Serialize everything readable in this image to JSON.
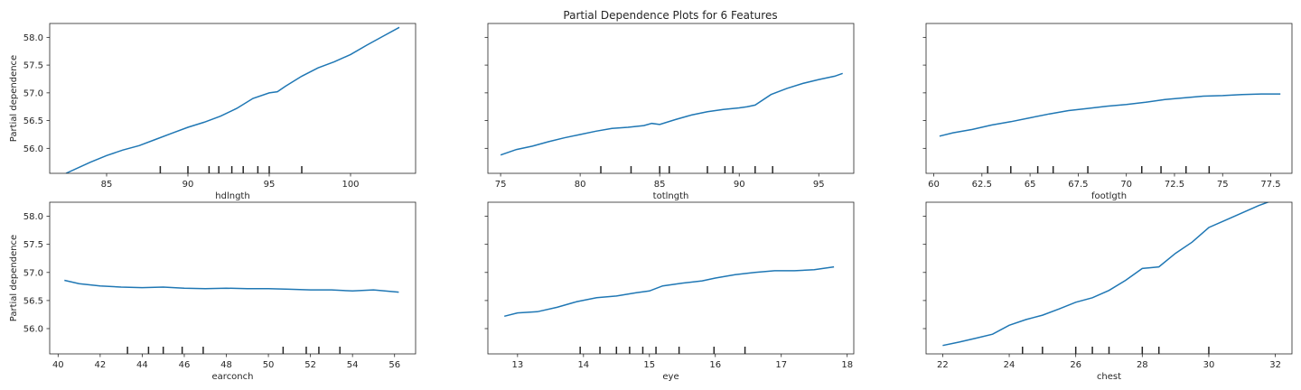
{
  "title": "Partial Dependence Plots for 6 Features",
  "colors": {
    "line": "#1f77b4",
    "axes": "#262626",
    "rug": "#262626",
    "background": "#ffffff"
  },
  "chart_data": {
    "type": "line",
    "title": "Partial Dependence Plots for 6 Features",
    "ylabel": "Partial dependence",
    "ylim": [
      55.55,
      58.25
    ],
    "yticks": [
      56.0,
      56.5,
      57.0,
      57.5,
      58.0
    ],
    "grid": false,
    "layout": "2x3 grid, shared y-axis",
    "subplots": [
      {
        "feature": "hdlngth",
        "xlim": [
          81.5,
          104.0
        ],
        "xticks": [
          85,
          90,
          95,
          100
        ],
        "x": [
          82.5,
          84,
          85,
          86,
          87,
          88,
          89,
          90,
          91,
          92,
          93,
          94,
          95,
          95.5,
          96,
          97,
          98,
          99,
          100,
          101,
          102,
          103
        ],
        "y": [
          55.55,
          55.75,
          55.87,
          55.97,
          56.05,
          56.16,
          56.27,
          56.38,
          56.47,
          56.58,
          56.72,
          56.9,
          57.0,
          57.02,
          57.12,
          57.3,
          57.45,
          57.56,
          57.69,
          57.86,
          58.02,
          58.18
        ],
        "rug": [
          88.3,
          90.0,
          91.3,
          91.9,
          92.7,
          93.4,
          94.3,
          95.0,
          97.0
        ]
      },
      {
        "feature": "totlngth",
        "xlim": [
          74.2,
          97.2
        ],
        "xticks": [
          75,
          80,
          85,
          90,
          95
        ],
        "x": [
          75.0,
          76.0,
          77.0,
          78.0,
          79.0,
          80.0,
          81.0,
          82.0,
          83.0,
          84.0,
          84.5,
          85.0,
          86.0,
          87.0,
          88.0,
          89.0,
          90.0,
          90.5,
          91.0,
          92.0,
          93.0,
          94.0,
          95.0,
          96.0,
          96.5
        ],
        "y": [
          55.88,
          55.98,
          56.04,
          56.12,
          56.19,
          56.25,
          56.31,
          56.36,
          56.38,
          56.41,
          56.45,
          56.43,
          56.52,
          56.6,
          56.66,
          56.7,
          56.73,
          56.75,
          56.78,
          56.97,
          57.08,
          57.17,
          57.24,
          57.3,
          57.35
        ],
        "rug": [
          81.3,
          83.2,
          85.0,
          85.6,
          88.0,
          89.1,
          89.6,
          91.0,
          92.1
        ]
      },
      {
        "feature": "footlgth",
        "xlim": [
          59.6,
          78.6
        ],
        "xticks": [
          60.0,
          62.5,
          65.0,
          67.5,
          70.0,
          72.5,
          75.0,
          77.5
        ],
        "x": [
          60.3,
          61.0,
          62.0,
          63.0,
          64.0,
          65.0,
          66.0,
          67.0,
          68.0,
          69.0,
          70.0,
          71.0,
          72.0,
          73.0,
          74.0,
          75.0,
          76.0,
          77.0,
          78.0
        ],
        "y": [
          56.22,
          56.28,
          56.34,
          56.42,
          56.48,
          56.55,
          56.62,
          56.68,
          56.72,
          56.76,
          56.79,
          56.83,
          56.88,
          56.91,
          56.94,
          56.95,
          56.97,
          56.98,
          56.98
        ],
        "rug": [
          62.8,
          64.0,
          65.4,
          66.2,
          68.0,
          70.8,
          71.8,
          73.1,
          74.3
        ]
      },
      {
        "feature": "earconch",
        "xlim": [
          39.6,
          57.0
        ],
        "xticks": [
          40,
          42,
          44,
          46,
          48,
          50,
          52,
          54,
          56
        ],
        "x": [
          40.3,
          41.0,
          42.0,
          43.0,
          44.0,
          45.0,
          46.0,
          47.0,
          48.0,
          49.0,
          50.0,
          51.0,
          52.0,
          53.0,
          54.0,
          55.0,
          56.2
        ],
        "y": [
          56.86,
          56.8,
          56.76,
          56.74,
          56.73,
          56.74,
          56.72,
          56.71,
          56.72,
          56.71,
          56.71,
          56.7,
          56.69,
          56.69,
          56.67,
          56.69,
          56.65
        ],
        "rug": [
          43.3,
          44.3,
          45.0,
          45.9,
          46.9,
          50.7,
          51.8,
          52.4,
          53.4
        ]
      },
      {
        "feature": "eye",
        "xlim": [
          12.55,
          18.1
        ],
        "xticks": [
          13,
          14,
          15,
          16,
          17,
          18
        ],
        "x": [
          12.8,
          13.0,
          13.3,
          13.6,
          13.9,
          14.2,
          14.5,
          14.8,
          15.0,
          15.2,
          15.5,
          15.8,
          16.0,
          16.3,
          16.6,
          16.9,
          17.2,
          17.5,
          17.8
        ],
        "y": [
          56.22,
          56.28,
          56.3,
          56.38,
          56.48,
          56.55,
          56.58,
          56.64,
          56.67,
          56.76,
          56.81,
          56.85,
          56.9,
          56.96,
          57.0,
          57.03,
          57.03,
          57.05,
          57.1
        ],
        "rug": [
          13.95,
          14.25,
          14.5,
          14.7,
          14.9,
          15.1,
          15.45,
          15.98,
          16.45
        ]
      },
      {
        "feature": "chest",
        "xlim": [
          21.5,
          32.5
        ],
        "xticks": [
          22,
          24,
          26,
          28,
          30,
          32
        ],
        "x": [
          22.0,
          22.5,
          23.0,
          23.5,
          24.0,
          24.5,
          25.0,
          25.5,
          26.0,
          26.5,
          27.0,
          27.5,
          28.0,
          28.5,
          29.0,
          29.5,
          30.0,
          30.5,
          31.0,
          31.5,
          32.0
        ],
        "y": [
          55.7,
          55.76,
          55.83,
          55.9,
          56.06,
          56.16,
          56.24,
          56.35,
          56.47,
          56.55,
          56.68,
          56.86,
          57.07,
          57.1,
          57.34,
          57.54,
          57.8,
          57.93,
          58.06,
          58.19,
          58.3
        ],
        "rug": [
          24.4,
          25.0,
          26.0,
          26.5,
          27.0,
          28.0,
          28.5,
          30.0
        ]
      }
    ]
  }
}
